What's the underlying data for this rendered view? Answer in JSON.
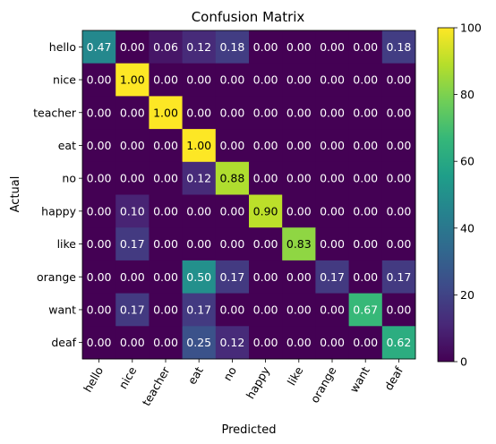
{
  "chart_data": {
    "type": "heatmap",
    "title": "Confusion Matrix",
    "xlabel": "Predicted",
    "ylabel": "Actual",
    "x_categories": [
      "hello",
      "nice",
      "teacher",
      "eat",
      "no",
      "happy",
      "like",
      "orange",
      "want",
      "deaf"
    ],
    "y_categories": [
      "hello",
      "nice",
      "teacher",
      "eat",
      "no",
      "happy",
      "like",
      "orange",
      "want",
      "deaf"
    ],
    "values": [
      [
        0.47,
        0.0,
        0.06,
        0.12,
        0.18,
        0.0,
        0.0,
        0.0,
        0.0,
        0.18
      ],
      [
        0.0,
        1.0,
        0.0,
        0.0,
        0.0,
        0.0,
        0.0,
        0.0,
        0.0,
        0.0
      ],
      [
        0.0,
        0.0,
        1.0,
        0.0,
        0.0,
        0.0,
        0.0,
        0.0,
        0.0,
        0.0
      ],
      [
        0.0,
        0.0,
        0.0,
        1.0,
        0.0,
        0.0,
        0.0,
        0.0,
        0.0,
        0.0
      ],
      [
        0.0,
        0.0,
        0.0,
        0.12,
        0.88,
        0.0,
        0.0,
        0.0,
        0.0,
        0.0
      ],
      [
        0.0,
        0.1,
        0.0,
        0.0,
        0.0,
        0.9,
        0.0,
        0.0,
        0.0,
        0.0
      ],
      [
        0.0,
        0.17,
        0.0,
        0.0,
        0.0,
        0.0,
        0.83,
        0.0,
        0.0,
        0.0
      ],
      [
        0.0,
        0.0,
        0.0,
        0.5,
        0.17,
        0.0,
        0.0,
        0.17,
        0.0,
        0.17
      ],
      [
        0.0,
        0.17,
        0.0,
        0.17,
        0.0,
        0.0,
        0.0,
        0.0,
        0.67,
        0.0
      ],
      [
        0.0,
        0.0,
        0.0,
        0.25,
        0.12,
        0.0,
        0.0,
        0.0,
        0.0,
        0.62
      ]
    ],
    "color_scale": {
      "colormap": "viridis",
      "range": [
        0,
        100
      ],
      "ticks": [
        0,
        20,
        40,
        60,
        80,
        100
      ]
    },
    "grid": false
  }
}
